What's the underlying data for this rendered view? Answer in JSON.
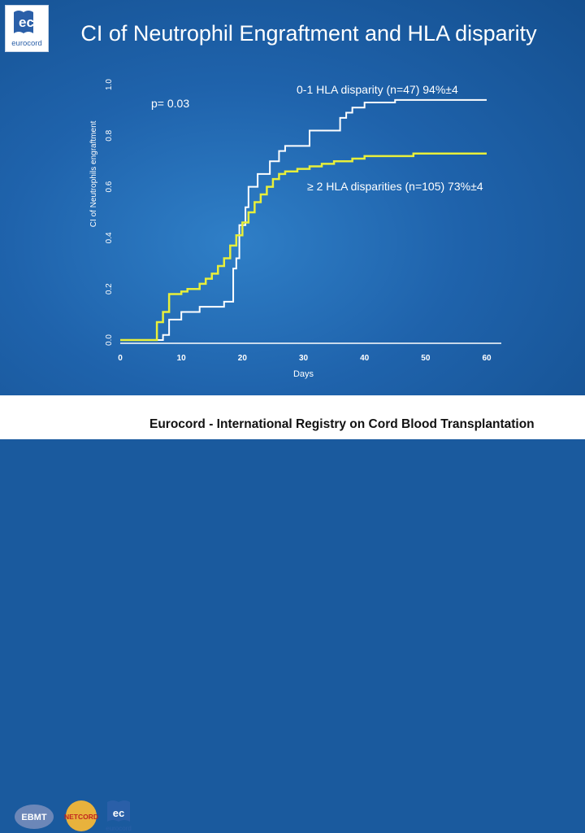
{
  "slide": {
    "title": "CI of Neutrophil Engraftment and HLA disparity",
    "logo_text": "eurocord",
    "footer_text": "Eurocord - International Registry on Cord Blood Transplantation",
    "footer_logos": [
      "EBMT",
      "NETCORD",
      "eurocord"
    ]
  },
  "colors": {
    "background": "#1f63ac",
    "series_white": "#ffffff",
    "series_yellow": "#e8ef3a"
  },
  "chart_data": {
    "type": "line",
    "step": true,
    "title": "",
    "xlabel": "Days",
    "ylabel": "CI of Neutrophils engraftment",
    "xlim": [
      0,
      60
    ],
    "ylim": [
      0,
      1
    ],
    "xticks": [
      "0",
      "10",
      "20",
      "30",
      "40",
      "50",
      "60"
    ],
    "yticks": [
      "0.0",
      "0.2",
      "0.4",
      "0.6",
      "0.8",
      "1.0"
    ],
    "annotations": [
      "p= 0.03"
    ],
    "series": [
      {
        "name": "0-1 HLA disparity (n=47) 94%±4",
        "color": "#ffffff",
        "points": [
          [
            0,
            0.0
          ],
          [
            7,
            0.02
          ],
          [
            8,
            0.08
          ],
          [
            10,
            0.11
          ],
          [
            13,
            0.13
          ],
          [
            17,
            0.15
          ],
          [
            18.5,
            0.28
          ],
          [
            19,
            0.32
          ],
          [
            19.5,
            0.45
          ],
          [
            20.5,
            0.52
          ],
          [
            21,
            0.6
          ],
          [
            22.5,
            0.65
          ],
          [
            24.5,
            0.7
          ],
          [
            26,
            0.74
          ],
          [
            27,
            0.76
          ],
          [
            31,
            0.82
          ],
          [
            36,
            0.87
          ],
          [
            37,
            0.89
          ],
          [
            38,
            0.91
          ],
          [
            40,
            0.93
          ],
          [
            45,
            0.94
          ],
          [
            60,
            0.94
          ]
        ]
      },
      {
        "name": "≥ 2 HLA disparities (n=105) 73%±4",
        "color": "#e8ef3a",
        "points": [
          [
            0,
            0.0
          ],
          [
            6,
            0.07
          ],
          [
            7,
            0.11
          ],
          [
            8,
            0.18
          ],
          [
            10,
            0.19
          ],
          [
            11,
            0.2
          ],
          [
            13,
            0.22
          ],
          [
            14,
            0.24
          ],
          [
            15,
            0.26
          ],
          [
            16,
            0.29
          ],
          [
            17,
            0.32
          ],
          [
            18,
            0.37
          ],
          [
            19,
            0.41
          ],
          [
            20,
            0.46
          ],
          [
            21,
            0.5
          ],
          [
            22,
            0.54
          ],
          [
            23,
            0.57
          ],
          [
            24,
            0.6
          ],
          [
            25,
            0.63
          ],
          [
            26,
            0.65
          ],
          [
            27,
            0.66
          ],
          [
            29,
            0.67
          ],
          [
            31,
            0.68
          ],
          [
            33,
            0.69
          ],
          [
            35,
            0.7
          ],
          [
            38,
            0.71
          ],
          [
            40,
            0.72
          ],
          [
            45,
            0.72
          ],
          [
            48,
            0.73
          ],
          [
            60,
            0.73
          ]
        ]
      }
    ]
  }
}
